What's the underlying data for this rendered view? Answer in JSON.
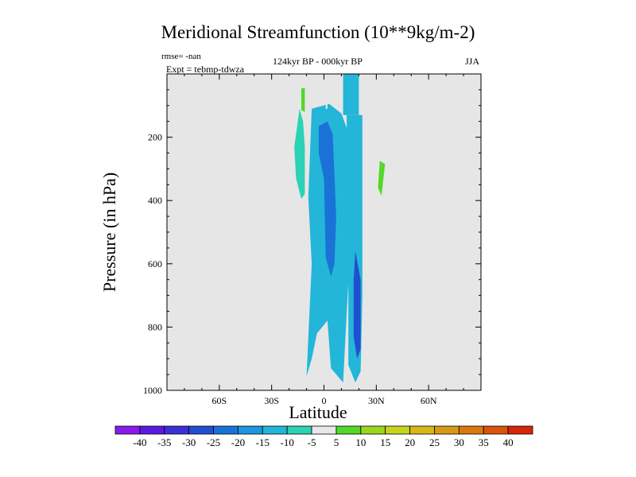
{
  "chart_data": {
    "type": "contour",
    "title": "Meridional Streamfunction (10**9kg/m-2)",
    "stats_label": "rmse= -nan",
    "experiment_label": "Expt = tebmp-tdwza",
    "period_label": "124kyr BP - 000kyr BP",
    "season_label": "JJA",
    "xlabel": "Latitude",
    "ylabel": "Pressure (in hPa)",
    "xlim": [
      -90,
      90
    ],
    "ylim": [
      1000,
      0
    ],
    "x_ticks": [
      {
        "value": -60,
        "label": "60S"
      },
      {
        "value": -30,
        "label": "30S"
      },
      {
        "value": 0,
        "label": "0"
      },
      {
        "value": 30,
        "label": "30N"
      },
      {
        "value": 60,
        "label": "60N"
      }
    ],
    "y_ticks": [
      {
        "value": 200,
        "label": "200"
      },
      {
        "value": 400,
        "label": "400"
      },
      {
        "value": 600,
        "label": "600"
      },
      {
        "value": 800,
        "label": "800"
      },
      {
        "value": 1000,
        "label": "1000"
      }
    ],
    "levels": [
      -40,
      -35,
      -30,
      -25,
      -20,
      -15,
      -10,
      -5,
      5,
      10,
      15,
      20,
      25,
      30,
      35,
      40
    ],
    "level_labels": [
      "-40",
      "-35",
      "-30",
      "-25",
      "-20",
      "-15",
      "-10",
      "-5",
      "5",
      "10",
      "15",
      "20",
      "25",
      "30",
      "35",
      "40"
    ],
    "colors": [
      "#8a1aeb",
      "#5b1ae0",
      "#3d2fd8",
      "#2050d0",
      "#1a72d6",
      "#1c96e0",
      "#23b6d8",
      "#2bd2b6",
      "#e8e8e8",
      "#52d828",
      "#9ad61e",
      "#c8d41a",
      "#d8b818",
      "#d89a14",
      "#d87a10",
      "#d8550c",
      "#d8260a"
    ],
    "regions": [
      {
        "name": "negative-core-region",
        "value": -12,
        "points": [
          [
            -10,
            955
          ],
          [
            -7,
            600
          ],
          [
            -9,
            390
          ],
          [
            -7,
            110
          ],
          [
            3,
            95
          ],
          [
            10,
            125
          ],
          [
            15,
            200
          ],
          [
            16,
            450
          ],
          [
            13,
            760
          ],
          [
            11,
            975
          ],
          [
            4,
            930
          ],
          [
            2,
            780
          ],
          [
            -4,
            820
          ],
          [
            -7,
            900
          ]
        ]
      },
      {
        "name": "upper-column-region",
        "value": -12,
        "points": [
          [
            11,
            0
          ],
          [
            20,
            0
          ],
          [
            20,
            130
          ],
          [
            11,
            130
          ]
        ]
      },
      {
        "name": "right-column-region",
        "value": -12,
        "points": [
          [
            13,
            130
          ],
          [
            22,
            130
          ],
          [
            22,
            700
          ],
          [
            21,
            940
          ],
          [
            18,
            975
          ],
          [
            14,
            920
          ],
          [
            14,
            700
          ]
        ]
      },
      {
        "name": "left-cell-region",
        "value": -9,
        "points": [
          [
            -17,
            230
          ],
          [
            -14,
            110
          ],
          [
            -12,
            150
          ],
          [
            -11,
            230
          ],
          [
            -11,
            380
          ],
          [
            -13,
            395
          ],
          [
            -16,
            330
          ]
        ]
      },
      {
        "name": "dark-core-region",
        "value": -22,
        "points": [
          [
            -3,
            165
          ],
          [
            2,
            150
          ],
          [
            5,
            190
          ],
          [
            7,
            450
          ],
          [
            6,
            600
          ],
          [
            4,
            640
          ],
          [
            1,
            580
          ],
          [
            0,
            330
          ],
          [
            -3,
            250
          ]
        ]
      },
      {
        "name": "dark-lower-core-region",
        "value": -27,
        "points": [
          [
            18,
            560
          ],
          [
            21,
            650
          ],
          [
            21,
            870
          ],
          [
            19,
            900
          ],
          [
            17,
            830
          ],
          [
            17,
            650
          ]
        ]
      },
      {
        "name": "positive-upper-region",
        "value": 7,
        "points": [
          [
            -13,
            45
          ],
          [
            -11,
            45
          ],
          [
            -11,
            120
          ],
          [
            -13,
            115
          ]
        ]
      },
      {
        "name": "positive-right-region",
        "value": 7,
        "points": [
          [
            32,
            275
          ],
          [
            35,
            285
          ],
          [
            33,
            385
          ],
          [
            31,
            360
          ]
        ]
      },
      {
        "name": "small-white-patch",
        "value": 0,
        "points": [
          [
            1,
            80
          ],
          [
            2,
            80
          ],
          [
            2,
            110
          ],
          [
            1,
            110
          ]
        ]
      }
    ]
  }
}
